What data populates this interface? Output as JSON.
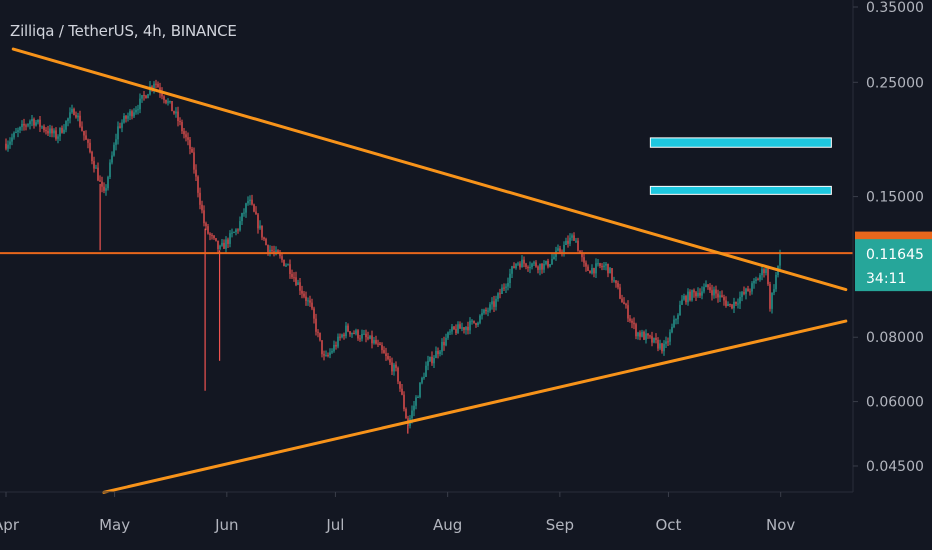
{
  "header": {
    "title": "Zilliqa / TetherUS, 4h, BINANCE"
  },
  "colors": {
    "background": "#131722",
    "up_candle": "#26a69a",
    "down_candle": "#ef5350",
    "trendline": "#f7931a",
    "horizontal_line": "#e8671c",
    "target_box": "#1ec8e0",
    "alert_badge": "#e8671c",
    "price_badge": "#26a69a",
    "axis_text": "#b2b5be"
  },
  "chart_data": {
    "type": "candlestick",
    "scale": "log",
    "ylim": [
      0.039,
      0.35
    ],
    "x_ticks": [
      "Apr",
      "May",
      "Jun",
      "Jul",
      "Aug",
      "Sep",
      "Oct",
      "Nov"
    ],
    "y_ticks": [
      "0.35000",
      "0.25000",
      "0.15000",
      "0.08000",
      "0.06000",
      "0.04500"
    ],
    "y_tick_values": [
      0.35,
      0.25,
      0.15,
      0.08,
      0.06,
      0.045
    ],
    "price_path": [
      {
        "d": "Apr 1",
        "p": 0.19
      },
      {
        "d": "Apr 8",
        "p": 0.212
      },
      {
        "d": "Apr 15",
        "p": 0.196
      },
      {
        "d": "Apr 20",
        "p": 0.222
      },
      {
        "d": "Apr 26",
        "p": 0.168
      },
      {
        "d": "Apr 28",
        "p": 0.15
      },
      {
        "d": "May 2",
        "p": 0.205
      },
      {
        "d": "May 8",
        "p": 0.228
      },
      {
        "d": "May 12",
        "p": 0.252
      },
      {
        "d": "May 18",
        "p": 0.215
      },
      {
        "d": "May 22",
        "p": 0.185
      },
      {
        "d": "May 26",
        "p": 0.13
      },
      {
        "d": "May 30",
        "p": 0.118
      },
      {
        "d": "Jun 4",
        "p": 0.13
      },
      {
        "d": "Jun 7",
        "p": 0.148
      },
      {
        "d": "Jun 12",
        "p": 0.12
      },
      {
        "d": "Jun 18",
        "p": 0.11
      },
      {
        "d": "Jun 24",
        "p": 0.092
      },
      {
        "d": "Jun 28",
        "p": 0.072
      },
      {
        "d": "Jul 4",
        "p": 0.083
      },
      {
        "d": "Jul 12",
        "p": 0.078
      },
      {
        "d": "Jul 18",
        "p": 0.068
      },
      {
        "d": "Jul 21",
        "p": 0.054
      },
      {
        "d": "Jul 26",
        "p": 0.07
      },
      {
        "d": "Aug 2",
        "p": 0.082
      },
      {
        "d": "Aug 8",
        "p": 0.085
      },
      {
        "d": "Aug 14",
        "p": 0.093
      },
      {
        "d": "Aug 20",
        "p": 0.112
      },
      {
        "d": "Aug 28",
        "p": 0.11
      },
      {
        "d": "Sep 5",
        "p": 0.126
      },
      {
        "d": "Sep 8",
        "p": 0.108
      },
      {
        "d": "Sep 14",
        "p": 0.11
      },
      {
        "d": "Sep 22",
        "p": 0.082
      },
      {
        "d": "Sep 30",
        "p": 0.076
      },
      {
        "d": "Oct 5",
        "p": 0.095
      },
      {
        "d": "Oct 12",
        "p": 0.1
      },
      {
        "d": "Oct 18",
        "p": 0.092
      },
      {
        "d": "Oct 24",
        "p": 0.1
      },
      {
        "d": "Oct 28",
        "p": 0.11
      },
      {
        "d": "Oct 29",
        "p": 0.092
      },
      {
        "d": "Nov 1",
        "p": 0.1165
      }
    ],
    "spikes": [
      {
        "d": "Apr 27",
        "low": 0.118
      },
      {
        "d": "May 26",
        "low": 0.063
      },
      {
        "d": "May 30",
        "low": 0.072
      },
      {
        "d": "Jul 21",
        "low": 0.052
      }
    ],
    "trendlines": [
      {
        "name": "descending-resistance",
        "from": {
          "d": "Apr 3",
          "p": 0.29
        },
        "to": {
          "d": "Nov 19",
          "p": 0.099
        }
      },
      {
        "name": "ascending-support",
        "from": {
          "d": "Apr 28",
          "p": 0.04
        },
        "to": {
          "d": "Nov 19",
          "p": 0.086
        }
      }
    ],
    "horizontal_levels": [
      {
        "p": 0.11653
      }
    ],
    "target_zones": [
      {
        "from_d": "Sep 26",
        "to_d": "Nov 15",
        "low": 0.1515,
        "high": 0.157
      },
      {
        "from_d": "Sep 26",
        "to_d": "Nov 15",
        "low": 0.187,
        "high": 0.195
      }
    ],
    "alert_label": "0.11653",
    "last_price": "0.11645",
    "countdown": "34:11"
  }
}
